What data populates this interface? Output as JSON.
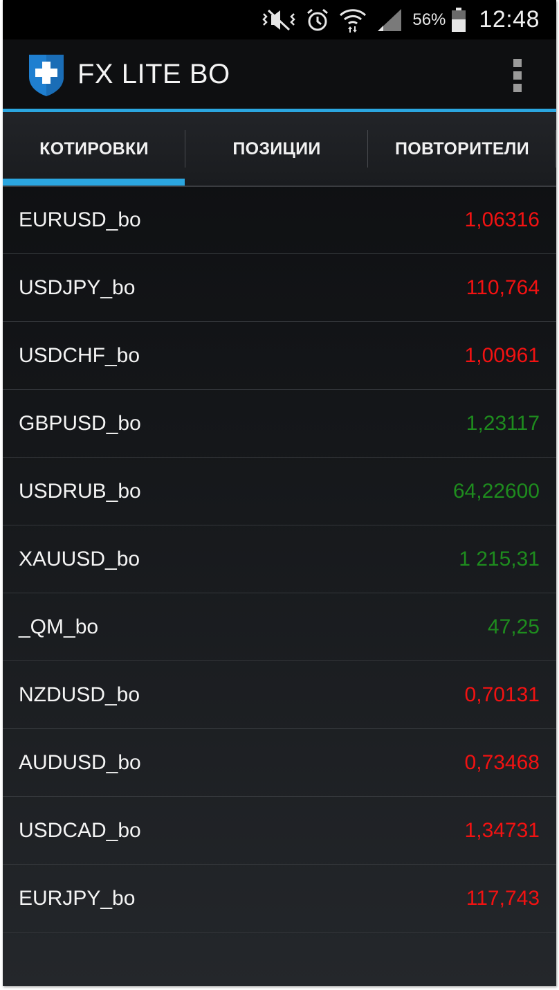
{
  "status_bar": {
    "battery_percent": "56%",
    "time": "12:48",
    "icons": [
      "vibrate-off-icon",
      "alarm-icon",
      "wifi-icon",
      "signal-icon",
      "battery-icon"
    ]
  },
  "app_bar": {
    "title": "FX LITE BO",
    "logo_icon": "shield-plus-icon",
    "menu_icon": "overflow-menu-icon"
  },
  "tabs": [
    {
      "label": "КОТИРОВКИ",
      "selected": true
    },
    {
      "label": "ПОЗИЦИИ",
      "selected": false
    },
    {
      "label": "ПОВТОРИТЕЛИ",
      "selected": false
    }
  ],
  "colors": {
    "accent": "#2ba6e0",
    "price_down": "#f21212",
    "price_up": "#1e8c1e"
  },
  "quotes": [
    {
      "symbol": "EURUSD_bo",
      "price": "1,06316",
      "trend": "down"
    },
    {
      "symbol": "USDJPY_bo",
      "price": "110,764",
      "trend": "down"
    },
    {
      "symbol": "USDCHF_bo",
      "price": "1,00961",
      "trend": "down"
    },
    {
      "symbol": "GBPUSD_bo",
      "price": "1,23117",
      "trend": "up"
    },
    {
      "symbol": "USDRUB_bo",
      "price": "64,22600",
      "trend": "up"
    },
    {
      "symbol": "XAUUSD_bo",
      "price": "1 215,31",
      "trend": "up"
    },
    {
      "symbol": "_QM_bo",
      "price": "47,25",
      "trend": "up"
    },
    {
      "symbol": "NZDUSD_bo",
      "price": "0,70131",
      "trend": "down"
    },
    {
      "symbol": "AUDUSD_bo",
      "price": "0,73468",
      "trend": "down"
    },
    {
      "symbol": "USDCAD_bo",
      "price": "1,34731",
      "trend": "down"
    },
    {
      "symbol": "EURJPY_bo",
      "price": "117,743",
      "trend": "down"
    }
  ]
}
